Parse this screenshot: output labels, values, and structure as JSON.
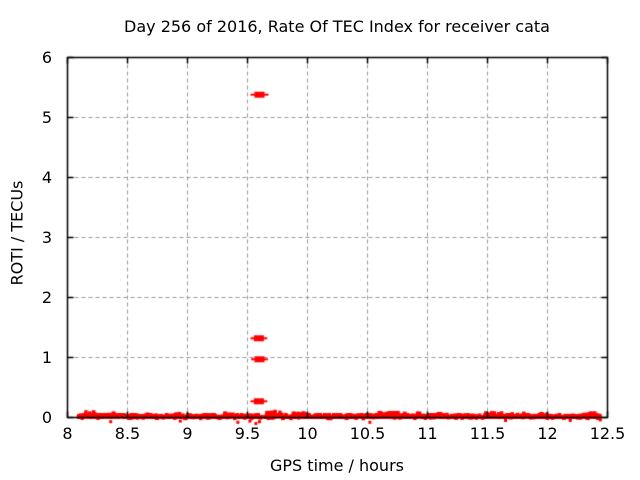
{
  "chart_data": {
    "type": "scatter",
    "title": "Day 256 of 2016, Rate Of TEC Index for receiver cata",
    "xlabel": "GPS time / hours",
    "ylabel": "ROTI / TECUs",
    "xlim": [
      8,
      12.5
    ],
    "ylim": [
      0,
      6
    ],
    "xticks": [
      8,
      8.5,
      9,
      9.5,
      10,
      10.5,
      11,
      11.5,
      12,
      12.5
    ],
    "yticks": [
      0,
      1,
      2,
      3,
      4,
      5,
      6
    ],
    "grid": true,
    "legend": "none",
    "colors": {
      "marker": "#ff0000",
      "grid": "#999999",
      "axis": "#000000",
      "background": "#ffffff",
      "text": "#000000"
    },
    "outliers": [
      {
        "x": 9.6,
        "y": 5.38,
        "xerr": 0.075
      },
      {
        "x": 9.595,
        "y": 1.32,
        "xerr": 0.07
      },
      {
        "x": 9.6,
        "y": 0.97,
        "xerr": 0.07
      },
      {
        "x": 9.595,
        "y": 0.27,
        "xerr": 0.07
      }
    ],
    "baseline": {
      "description": "dense band of ROTI points hugging 0 TECUs",
      "x_start": 8.09,
      "x_end": 12.44,
      "step": 0.004,
      "y_base_max": 0.04,
      "seed": 1337,
      "gaps": [
        [
          9.622,
          9.648
        ]
      ],
      "bumps": [
        {
          "x": 8.17,
          "w": 0.07,
          "amp": 0.08
        },
        {
          "x": 8.36,
          "w": 0.05,
          "amp": 0.06
        },
        {
          "x": 8.62,
          "w": 0.05,
          "amp": 0.055
        },
        {
          "x": 8.95,
          "w": 0.05,
          "amp": 0.055
        },
        {
          "x": 9.33,
          "w": 0.06,
          "amp": 0.06
        },
        {
          "x": 9.73,
          "w": 0.07,
          "amp": 0.095
        },
        {
          "x": 9.93,
          "w": 0.05,
          "amp": 0.06
        },
        {
          "x": 10.68,
          "w": 0.09,
          "amp": 0.07
        },
        {
          "x": 10.87,
          "w": 0.07,
          "amp": 0.06
        },
        {
          "x": 11.12,
          "w": 0.05,
          "amp": 0.055
        },
        {
          "x": 11.55,
          "w": 0.08,
          "amp": 0.065
        },
        {
          "x": 11.76,
          "w": 0.08,
          "amp": 0.06
        },
        {
          "x": 11.97,
          "w": 0.05,
          "amp": 0.055
        },
        {
          "x": 12.34,
          "w": 0.08,
          "amp": 0.065
        }
      ],
      "dips": [
        {
          "x": 8.36,
          "y": -0.07
        },
        {
          "x": 8.94,
          "y": -0.06
        },
        {
          "x": 9.42,
          "y": -0.08
        },
        {
          "x": 9.52,
          "y": -0.06
        },
        {
          "x": 9.57,
          "y": -0.1
        },
        {
          "x": 9.6,
          "y": -0.07
        },
        {
          "x": 10.52,
          "y": -0.08
        },
        {
          "x": 11.65,
          "y": -0.05
        },
        {
          "x": 12.19,
          "y": -0.05
        },
        {
          "x": 12.44,
          "y": -0.04
        }
      ]
    }
  }
}
